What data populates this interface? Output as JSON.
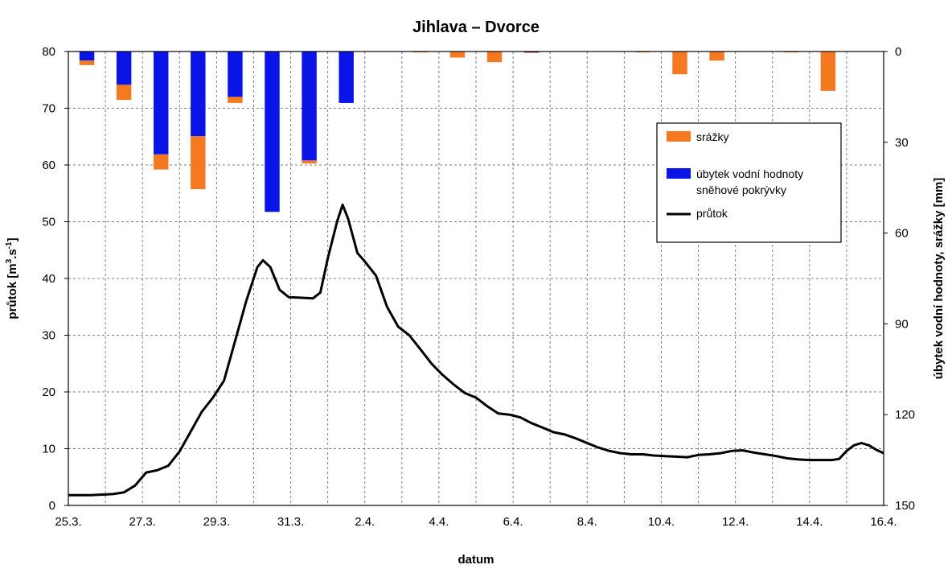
{
  "chart_data": {
    "type": "bar+line",
    "title": "Jihlava – Dvorce",
    "xlabel": "datum",
    "ylabel_left_main": "průtok [m",
    "ylabel_left_sup1": "3",
    "ylabel_left_mid": ".s",
    "ylabel_left_sup2": "-1",
    "ylabel_left_end": "]",
    "ylabel_right": "úbytek vodní hodnoty, srážky [mm]",
    "x_range_days": [
      0,
      22
    ],
    "x_ticks": [
      {
        "day": 0,
        "label": "25.3."
      },
      {
        "day": 2,
        "label": "27.3."
      },
      {
        "day": 4,
        "label": "29.3."
      },
      {
        "day": 6,
        "label": "31.3."
      },
      {
        "day": 8,
        "label": "2.4."
      },
      {
        "day": 10,
        "label": "4.4."
      },
      {
        "day": 12,
        "label": "6.4."
      },
      {
        "day": 14,
        "label": "8.4."
      },
      {
        "day": 16,
        "label": "10.4."
      },
      {
        "day": 18,
        "label": "12.4."
      },
      {
        "day": 20,
        "label": "14.4."
      },
      {
        "day": 22,
        "label": "16.4."
      }
    ],
    "ylim_left": [
      0,
      80
    ],
    "y_ticks_left": [
      "0",
      "10",
      "20",
      "30",
      "40",
      "50",
      "60",
      "70",
      "80"
    ],
    "ylim_right_inverted": [
      0,
      150
    ],
    "y_ticks_right": [
      "0",
      "30",
      "60",
      "90",
      "120",
      "150"
    ],
    "grid": true,
    "legend_position": "top-right",
    "legend": {
      "srazky": "srážky",
      "snow_line1": "úbytek vodní hodnoty",
      "snow_line2": "sněhové pokrývky",
      "flow": "průtok"
    },
    "colors": {
      "srazky": "#f47920",
      "snow": "#0a14e6",
      "flow": "#000000",
      "grid": "#7f7f7f"
    },
    "bars": [
      {
        "day": 0.5,
        "snow_mm": 3,
        "rain_mm": 1.5
      },
      {
        "day": 1.5,
        "snow_mm": 11,
        "rain_mm": 5
      },
      {
        "day": 2.5,
        "snow_mm": 34,
        "rain_mm": 5
      },
      {
        "day": 3.5,
        "snow_mm": 28,
        "rain_mm": 17.5
      },
      {
        "day": 4.5,
        "snow_mm": 15,
        "rain_mm": 2
      },
      {
        "day": 5.5,
        "snow_mm": 53,
        "rain_mm": 0
      },
      {
        "day": 6.5,
        "snow_mm": 36,
        "rain_mm": 1
      },
      {
        "day": 7.5,
        "snow_mm": 17,
        "rain_mm": 0
      },
      {
        "day": 9.5,
        "snow_mm": 0,
        "rain_mm": 0.3
      },
      {
        "day": 10.5,
        "snow_mm": 0,
        "rain_mm": 2
      },
      {
        "day": 11.5,
        "snow_mm": 0,
        "rain_mm": 3.5
      },
      {
        "day": 12.5,
        "snow_mm": 0.3,
        "rain_mm": 0.2
      },
      {
        "day": 15.5,
        "snow_mm": 0,
        "rain_mm": 0.3
      },
      {
        "day": 16.5,
        "snow_mm": 0,
        "rain_mm": 7.5
      },
      {
        "day": 17.5,
        "snow_mm": 0,
        "rain_mm": 3
      },
      {
        "day": 19.5,
        "snow_mm": 0,
        "rain_mm": 0.3
      },
      {
        "day": 20.5,
        "snow_mm": 0,
        "rain_mm": 13
      }
    ],
    "flow": [
      [
        0,
        1.8
      ],
      [
        0.6,
        1.8
      ],
      [
        1.2,
        2.0
      ],
      [
        1.5,
        2.3
      ],
      [
        1.8,
        3.5
      ],
      [
        2.1,
        5.8
      ],
      [
        2.4,
        6.2
      ],
      [
        2.7,
        7.0
      ],
      [
        3.0,
        9.5
      ],
      [
        3.3,
        13
      ],
      [
        3.6,
        16.5
      ],
      [
        3.9,
        19
      ],
      [
        4.2,
        22
      ],
      [
        4.5,
        29
      ],
      [
        4.8,
        36
      ],
      [
        5.1,
        42
      ],
      [
        5.25,
        43.2
      ],
      [
        5.45,
        42
      ],
      [
        5.7,
        38
      ],
      [
        5.95,
        36.7
      ],
      [
        6.3,
        36.6
      ],
      [
        6.6,
        36.5
      ],
      [
        6.8,
        37.5
      ],
      [
        7.0,
        43.5
      ],
      [
        7.25,
        50
      ],
      [
        7.4,
        53
      ],
      [
        7.55,
        50.5
      ],
      [
        7.8,
        44.5
      ],
      [
        8.0,
        43
      ],
      [
        8.3,
        40.5
      ],
      [
        8.6,
        35
      ],
      [
        8.9,
        31.5
      ],
      [
        9.2,
        30
      ],
      [
        9.5,
        27.5
      ],
      [
        9.8,
        25
      ],
      [
        10.1,
        23
      ],
      [
        10.4,
        21.3
      ],
      [
        10.7,
        19.8
      ],
      [
        11.0,
        19
      ],
      [
        11.3,
        17.5
      ],
      [
        11.6,
        16.2
      ],
      [
        11.9,
        16.0
      ],
      [
        12.2,
        15.5
      ],
      [
        12.5,
        14.5
      ],
      [
        12.8,
        13.7
      ],
      [
        13.1,
        12.9
      ],
      [
        13.4,
        12.5
      ],
      [
        13.7,
        11.8
      ],
      [
        14.0,
        11.0
      ],
      [
        14.3,
        10.2
      ],
      [
        14.6,
        9.6
      ],
      [
        14.9,
        9.2
      ],
      [
        15.2,
        9.0
      ],
      [
        15.5,
        9.0
      ],
      [
        15.8,
        8.8
      ],
      [
        16.1,
        8.7
      ],
      [
        16.4,
        8.6
      ],
      [
        16.7,
        8.5
      ],
      [
        17.0,
        8.9
      ],
      [
        17.3,
        9.0
      ],
      [
        17.6,
        9.2
      ],
      [
        17.9,
        9.6
      ],
      [
        18.2,
        9.7
      ],
      [
        18.5,
        9.3
      ],
      [
        18.8,
        9.0
      ],
      [
        19.1,
        8.7
      ],
      [
        19.4,
        8.3
      ],
      [
        19.7,
        8.1
      ],
      [
        20.0,
        8.0
      ],
      [
        20.3,
        8.0
      ],
      [
        20.6,
        8.0
      ],
      [
        20.8,
        8.2
      ],
      [
        21.0,
        9.6
      ],
      [
        21.2,
        10.6
      ],
      [
        21.4,
        11.0
      ],
      [
        21.6,
        10.6
      ],
      [
        21.8,
        9.8
      ],
      [
        22.0,
        9.2
      ]
    ]
  }
}
